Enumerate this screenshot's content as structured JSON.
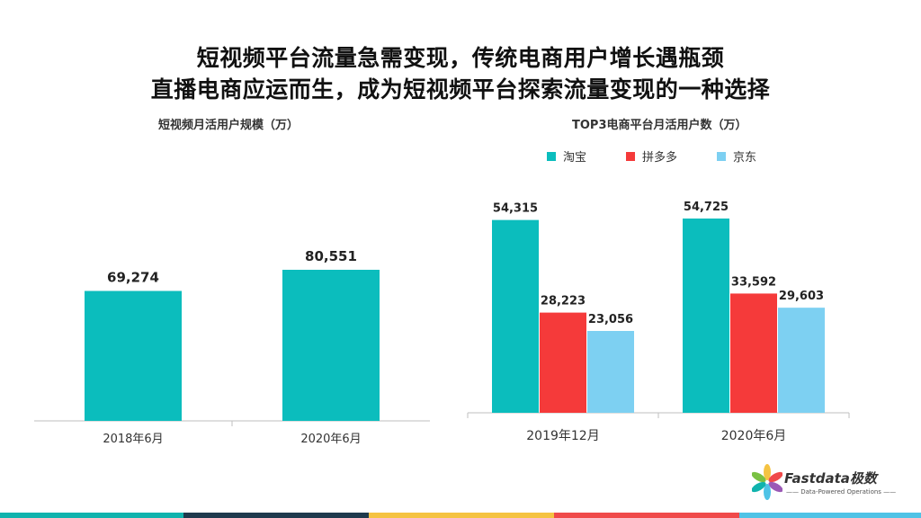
{
  "title_line1": "短视频平台流量急需变现，传统电商用户增长遇瓶颈",
  "title_line2": "直播电商应运而生，成为短视频平台探索流量变现的一种选择",
  "logo": {
    "name": "Fastdata极数",
    "tagline": "—— Data-Powered Operations ——"
  },
  "bottom_bar_colors": [
    "#10b3ad",
    "#1f3a4d",
    "#f5c342",
    "#f04a4a",
    "#4fc3e6"
  ],
  "chart_data": [
    {
      "type": "bar",
      "title": "短视频月活用户规模（万）",
      "categories": [
        "2018年6月",
        "2020年6月"
      ],
      "values": [
        69274,
        80551
      ],
      "value_labels": [
        "69,274",
        "80,551"
      ],
      "color": "#0bbdbd",
      "ylim": [
        0,
        90000
      ],
      "grid": false
    },
    {
      "type": "bar",
      "title": "TOP3电商平台月活用户数（万）",
      "categories": [
        "2019年12月",
        "2020年6月"
      ],
      "legend_position": "top",
      "series": [
        {
          "name": "淘宝",
          "color": "#0bbdbd",
          "values": [
            54315,
            54725
          ],
          "value_labels": [
            "54,315",
            "54,725"
          ]
        },
        {
          "name": "拼多多",
          "color": "#f53a3a",
          "values": [
            28223,
            33592
          ],
          "value_labels": [
            "28,223",
            "33,592"
          ]
        },
        {
          "name": "京东",
          "color": "#7dd0f2",
          "values": [
            23056,
            29603
          ],
          "value_labels": [
            "23,056",
            "29,603"
          ]
        }
      ],
      "ylim": [
        0,
        60000
      ],
      "grid": false
    }
  ]
}
